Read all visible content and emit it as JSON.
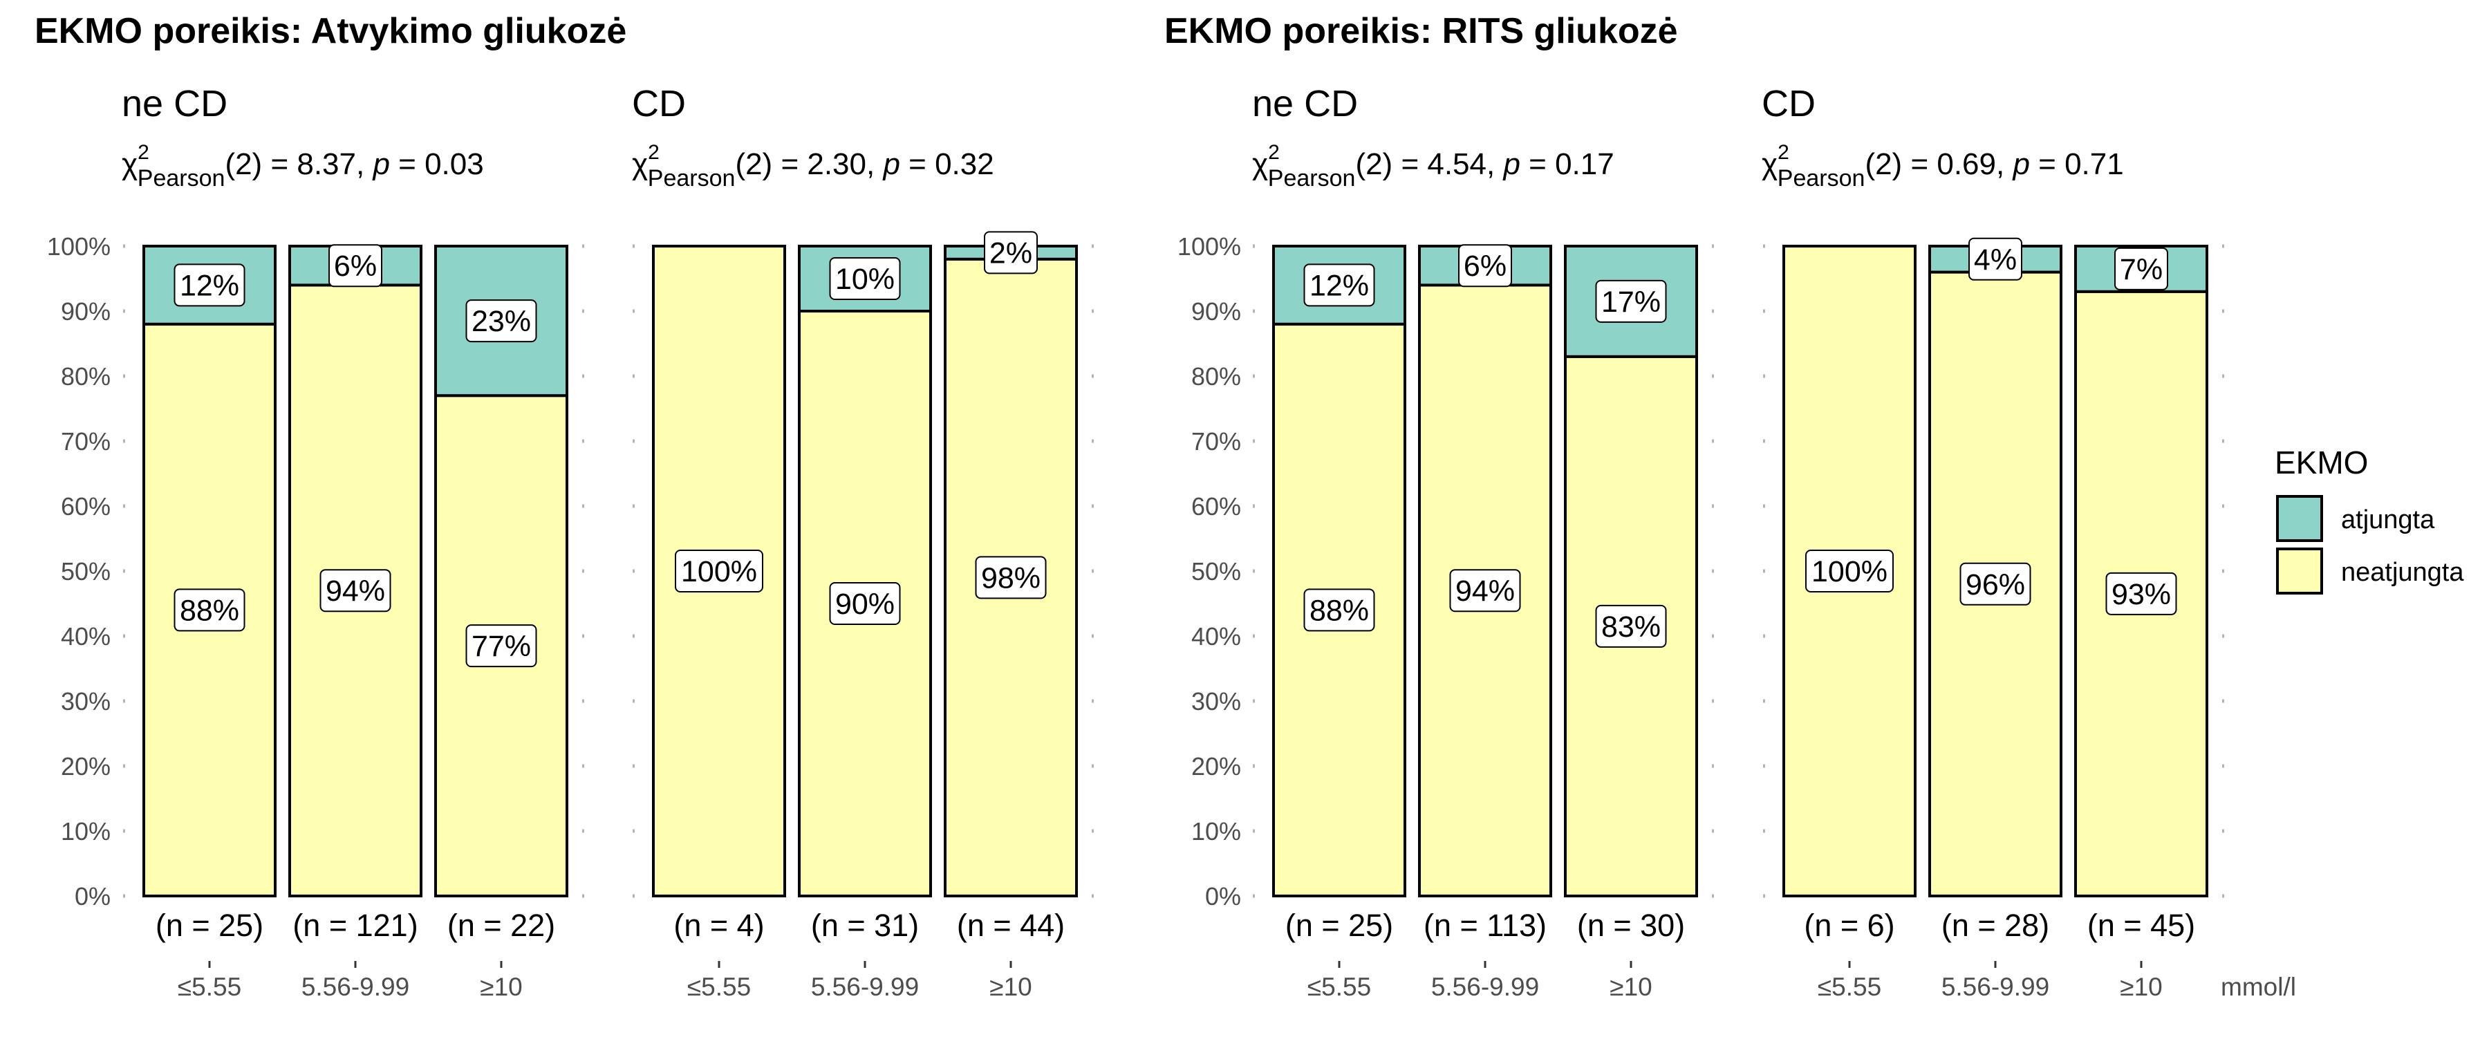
{
  "chart_data": [
    {
      "type": "bar",
      "section_title": "EKMO poreikis: Atvykimo gliukozė",
      "title": "ne CD",
      "stat": {
        "chi_sup": "2",
        "chi_sub": "Pearson",
        "text": "(2) = 8.37, ",
        "p_label": "p",
        "p_text": " = 0.03"
      },
      "categories": [
        "≤5.55",
        "5.56-9.99",
        "≥10"
      ],
      "counts": [
        "(n = 25)",
        "(n = 121)",
        "(n = 22)"
      ],
      "series": [
        {
          "name": "neatjungta",
          "values": [
            88,
            94,
            77
          ],
          "labels": [
            "88%",
            "94%",
            "77%"
          ]
        },
        {
          "name": "atjungta",
          "values": [
            12,
            6,
            23
          ],
          "labels": [
            "12%",
            "6%",
            "23%"
          ]
        }
      ],
      "ylim": [
        0,
        100
      ]
    },
    {
      "type": "bar",
      "title": "CD",
      "stat": {
        "chi_sup": "2",
        "chi_sub": "Pearson",
        "text": "(2) = 2.30, ",
        "p_label": "p",
        "p_text": " = 0.32"
      },
      "categories": [
        "≤5.55",
        "5.56-9.99",
        "≥10"
      ],
      "counts": [
        "(n = 4)",
        "(n = 31)",
        "(n = 44)"
      ],
      "series": [
        {
          "name": "neatjungta",
          "values": [
            100,
            90,
            98
          ],
          "labels": [
            "100%",
            "90%",
            "98%"
          ]
        },
        {
          "name": "atjungta",
          "values": [
            0,
            10,
            2
          ],
          "labels": [
            "",
            "10%",
            "2%"
          ]
        }
      ],
      "ylim": [
        0,
        100
      ]
    },
    {
      "type": "bar",
      "section_title": "EKMO poreikis: RITS gliukozė",
      "title": "ne CD",
      "stat": {
        "chi_sup": "2",
        "chi_sub": "Pearson",
        "text": "(2) = 4.54, ",
        "p_label": "p",
        "p_text": " = 0.17"
      },
      "categories": [
        "≤5.55",
        "5.56-9.99",
        "≥10"
      ],
      "counts": [
        "(n = 25)",
        "(n = 113)",
        "(n = 30)"
      ],
      "series": [
        {
          "name": "neatjungta",
          "values": [
            88,
            94,
            83
          ],
          "labels": [
            "88%",
            "94%",
            "83%"
          ]
        },
        {
          "name": "atjungta",
          "values": [
            12,
            6,
            17
          ],
          "labels": [
            "12%",
            "6%",
            "17%"
          ]
        }
      ],
      "ylim": [
        0,
        100
      ]
    },
    {
      "type": "bar",
      "title": "CD",
      "stat": {
        "chi_sup": "2",
        "chi_sub": "Pearson",
        "text": "(2) = 0.69, ",
        "p_label": "p",
        "p_text": " = 0.71"
      },
      "categories": [
        "≤5.55",
        "5.56-9.99",
        "≥10"
      ],
      "counts": [
        "(n = 6)",
        "(n = 28)",
        "(n = 45)"
      ],
      "series": [
        {
          "name": "neatjungta",
          "values": [
            100,
            96,
            93
          ],
          "labels": [
            "100%",
            "96%",
            "93%"
          ]
        },
        {
          "name": "atjungta",
          "values": [
            0,
            4,
            7
          ],
          "labels": [
            "",
            "4%",
            "7%"
          ]
        }
      ],
      "ylim": [
        0,
        100
      ],
      "xunit": "mmol/l"
    }
  ],
  "yticks": [
    "0%",
    "10%",
    "20%",
    "30%",
    "40%",
    "50%",
    "60%",
    "70%",
    "80%",
    "90%",
    "100%"
  ],
  "legend": {
    "title": "EKMO",
    "placement": "right",
    "items": [
      {
        "name": "atjungta",
        "color": "#8dd3c7"
      },
      {
        "name": "neatjungta",
        "color": "#ffffb3"
      }
    ]
  },
  "colors": {
    "atjungta": "#8dd3c7",
    "neatjungta": "#ffffb3"
  }
}
